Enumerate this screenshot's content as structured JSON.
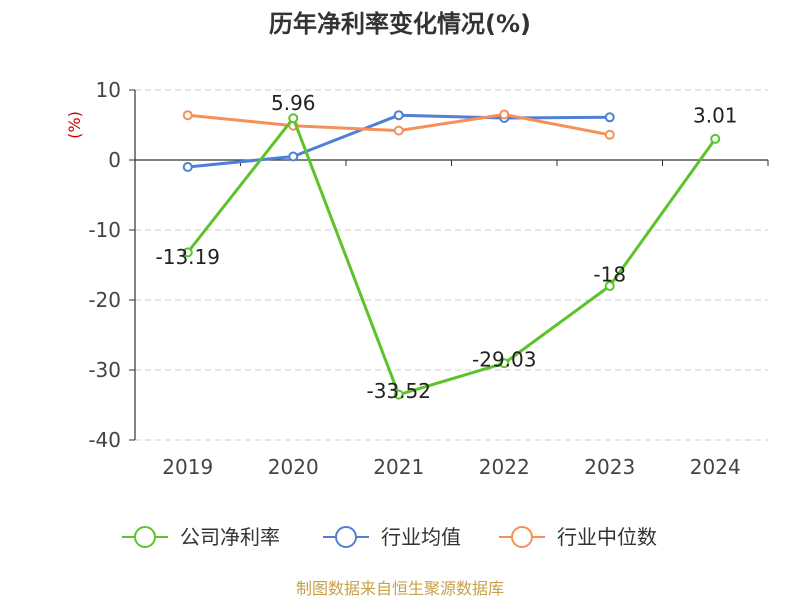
{
  "chart_data": {
    "type": "line",
    "title": "历年净利率变化情况(%)",
    "ylabel": "(%)",
    "xlabel": "",
    "categories": [
      "2019",
      "2020",
      "2021",
      "2022",
      "2023",
      "2024"
    ],
    "ylim": [
      -40,
      10
    ],
    "yticks": [
      10,
      0,
      -10,
      -20,
      -30,
      -40
    ],
    "grid": true,
    "legend_position": "bottom",
    "series": [
      {
        "name": "公司净利率",
        "color": "#5cc32a",
        "values": [
          -13.19,
          5.96,
          -33.52,
          -29.03,
          -18,
          3.01
        ],
        "labels": [
          "-13.19",
          "5.96",
          "-33.52",
          "-29.03",
          "-18",
          "3.01"
        ]
      },
      {
        "name": "行业均值",
        "color": "#4f7fd8",
        "values": [
          -1.0,
          0.5,
          6.4,
          6.0,
          6.1,
          null
        ]
      },
      {
        "name": "行业中位数",
        "color": "#f59058",
        "values": [
          6.4,
          4.9,
          4.2,
          6.5,
          3.6,
          null
        ]
      }
    ],
    "source": "制图数据来自恒生聚源数据库"
  }
}
